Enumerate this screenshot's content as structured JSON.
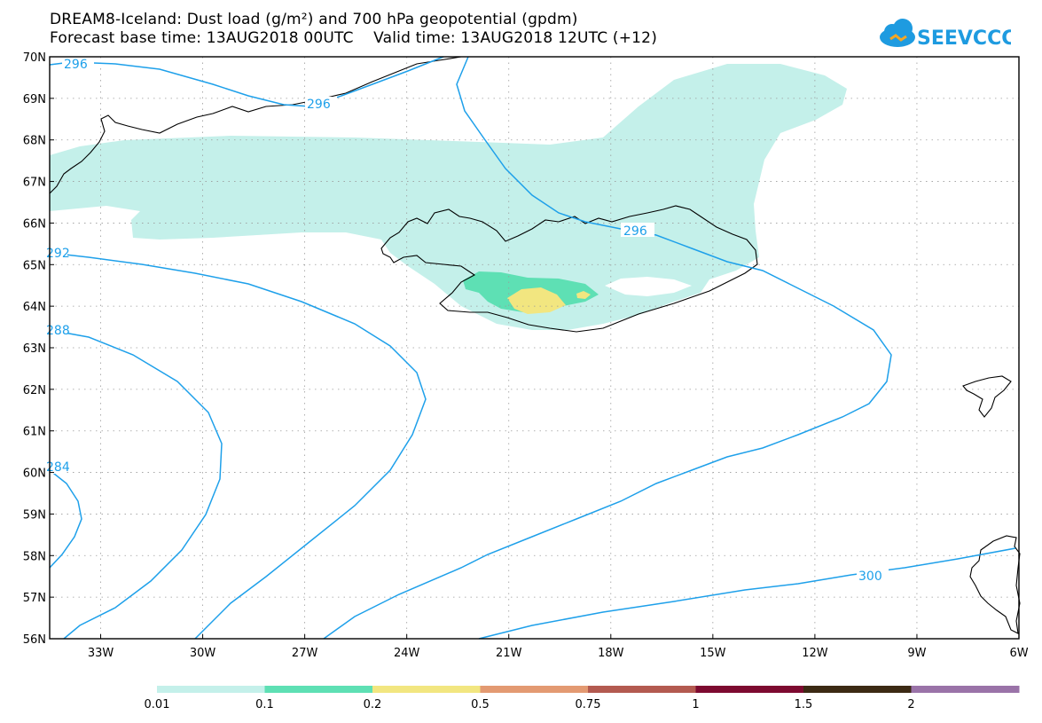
{
  "title": {
    "line1": "DREAM8-Iceland: Dust load (g/m²) and 700 hPa geopotential (gpdm)",
    "line2": "Forecast base time: 13AUG2018 00UTC    Valid time: 13AUG2018 12UTC (+12)"
  },
  "logo": {
    "text": "SEEVCCC",
    "icon": "cloud-icon",
    "color": "#1e9be0"
  },
  "map": {
    "lon_range": [
      -34.5,
      -6
    ],
    "lat_range": [
      56,
      70
    ],
    "lat_labels": [
      "70N",
      "69N",
      "68N",
      "67N",
      "66N",
      "65N",
      "64N",
      "63N",
      "62N",
      "61N",
      "60N",
      "59N",
      "58N",
      "57N",
      "56N"
    ],
    "lon_labels": [
      "33W",
      "30W",
      "27W",
      "24W",
      "21W",
      "18W",
      "15W",
      "12W",
      "9W",
      "6W"
    ],
    "contour_color": "#1ea0ea",
    "contour_labels": [
      "296",
      "296",
      "296",
      "292",
      "288",
      "284",
      "300"
    ]
  },
  "colorbar": {
    "ticks": [
      "0.01",
      "0.1",
      "0.2",
      "0.5",
      "0.75",
      "1",
      "1.5",
      "2"
    ],
    "colors": [
      "#c4f0ea",
      "#5ee0b4",
      "#f2e680",
      "#e39a72",
      "#b35a50",
      "#7d0a30",
      "#3c2a14",
      "#9a73a8"
    ]
  }
}
